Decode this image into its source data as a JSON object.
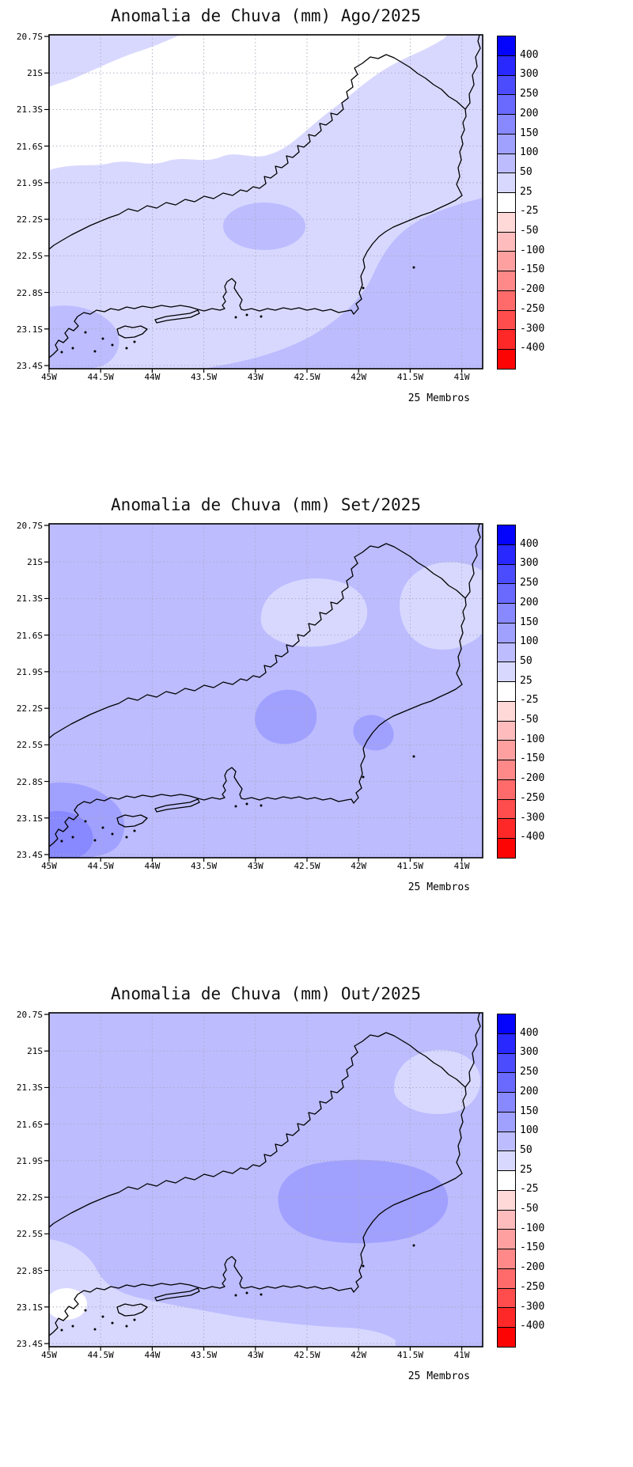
{
  "members_label": "25 Membros",
  "axes": {
    "lat_ticks": [
      "20.7S",
      "21S",
      "21.3S",
      "21.6S",
      "21.9S",
      "22.2S",
      "22.5S",
      "22.8S",
      "23.1S",
      "23.4S"
    ],
    "lon_ticks": [
      "45W",
      "44.5W",
      "44W",
      "43.5W",
      "43W",
      "42.5W",
      "42W",
      "41.5W",
      "41W"
    ]
  },
  "colorbar": {
    "labels": [
      "400",
      "300",
      "250",
      "200",
      "150",
      "100",
      "50",
      "25",
      "-25",
      "-50",
      "-100",
      "-150",
      "-200",
      "-250",
      "-300",
      "-400"
    ],
    "colors": [
      "#0404fc",
      "#2828ff",
      "#4c4cff",
      "#6a6aff",
      "#8888ff",
      "#a0a0ff",
      "#bcbcff",
      "#d8d8ff",
      "#ffffff",
      "#ffd8d8",
      "#ffbcbc",
      "#ffa0a0",
      "#ff8888",
      "#ff6a6a",
      "#ff4c4c",
      "#ff2828",
      "#fc0404"
    ]
  },
  "panels": [
    {
      "id": "ago",
      "title": "Anomalia de Chuva (mm) Ago/2025"
    },
    {
      "id": "set",
      "title": "Anomalia de Chuva (mm) Set/2025"
    },
    {
      "id": "out",
      "title": "Anomalia de Chuva (mm) Out/2025"
    }
  ],
  "chart_data": [
    {
      "type": "heatmap",
      "title": "Anomalia de Chuva (mm) Ago/2025",
      "units": "mm",
      "region": "Rio de Janeiro state, Brazil",
      "x_ticks": [
        "45W",
        "44.5W",
        "44W",
        "43.5W",
        "43W",
        "42.5W",
        "42W",
        "41.5W",
        "41W"
      ],
      "y_ticks": [
        "20.7S",
        "21S",
        "21.3S",
        "21.6S",
        "21.9S",
        "22.2S",
        "22.5S",
        "22.8S",
        "23.1S",
        "23.4S"
      ],
      "contour_levels_mm": [
        -400,
        -300,
        -250,
        -200,
        -150,
        -100,
        -50,
        -25,
        25,
        50,
        100,
        150,
        200,
        250,
        300,
        400
      ],
      "annotation": "25 Membros",
      "regions": [
        {
          "area": "northern and central band (21S-21.9S)",
          "anomaly_mm": "-25 to 25"
        },
        {
          "area": "top-left corner and mid-state band",
          "anomaly_mm": "25 to 50"
        },
        {
          "area": "small patch near 43W / 22.2S",
          "anomaly_mm": "50 to 100"
        },
        {
          "area": "southeast coast and bottom-right sector",
          "anomaly_mm": "50 to 100"
        },
        {
          "area": "southwest corner near 44.7W / 23.2S",
          "anomaly_mm": "50 to 100"
        }
      ],
      "legend_position": "right colorbar"
    },
    {
      "type": "heatmap",
      "title": "Anomalia de Chuva (mm) Set/2025",
      "units": "mm",
      "region": "Rio de Janeiro state, Brazil",
      "x_ticks": [
        "45W",
        "44.5W",
        "44W",
        "43.5W",
        "43W",
        "42.5W",
        "42W",
        "41.5W",
        "41W"
      ],
      "y_ticks": [
        "20.7S",
        "21S",
        "21.3S",
        "21.6S",
        "21.9S",
        "22.2S",
        "22.5S",
        "22.8S",
        "23.1S",
        "23.4S"
      ],
      "contour_levels_mm": [
        -400,
        -300,
        -250,
        -200,
        -150,
        -100,
        -50,
        -25,
        25,
        50,
        100,
        150,
        200,
        250,
        300,
        400
      ],
      "annotation": "25 Membros",
      "regions": [
        {
          "area": "most of the domain",
          "anomaly_mm": "50 to 100"
        },
        {
          "area": "north-central patch near 42.8W / 21.4S",
          "anomaly_mm": "25 to 50"
        },
        {
          "area": "northeast patch near 41.4W / 21.4S",
          "anomaly_mm": "25 to 50"
        },
        {
          "area": "central blob near 42.8W / 22.3S",
          "anomaly_mm": "100 to 150"
        },
        {
          "area": "coastal blob near 42W / 22.4S",
          "anomaly_mm": "100 to 150"
        },
        {
          "area": "southwest corner near 44.7W / 23.2S",
          "anomaly_mm": "150 to 200"
        }
      ],
      "legend_position": "right colorbar"
    },
    {
      "type": "heatmap",
      "title": "Anomalia de Chuva (mm) Out/2025",
      "units": "mm",
      "region": "Rio de Janeiro state, Brazil",
      "x_ticks": [
        "45W",
        "44.5W",
        "44W",
        "43.5W",
        "43W",
        "42.5W",
        "42W",
        "41.5W",
        "41W"
      ],
      "y_ticks": [
        "20.7S",
        "21S",
        "21.3S",
        "21.6S",
        "21.9S",
        "22.2S",
        "22.5S",
        "22.8S",
        "23.1S",
        "23.4S"
      ],
      "contour_levels_mm": [
        -400,
        -300,
        -250,
        -200,
        -150,
        -100,
        -50,
        -25,
        25,
        50,
        100,
        150,
        200,
        250,
        300,
        400
      ],
      "annotation": "25 Membros",
      "regions": [
        {
          "area": "most of the domain",
          "anomaly_mm": "50 to 100"
        },
        {
          "area": "northeast patch near 41.5W / 21.4S",
          "anomaly_mm": "25 to 50"
        },
        {
          "area": "large central-east blob 43W-41.5W / 21.9S-22.5S",
          "anomaly_mm": "100 to 150"
        },
        {
          "area": "southwest quadrant and bottom band",
          "anomaly_mm": "25 to 50"
        },
        {
          "area": "small spot near left edge 44.8W / 23S",
          "anomaly_mm": "-25 to 25"
        }
      ],
      "legend_position": "right colorbar"
    }
  ]
}
